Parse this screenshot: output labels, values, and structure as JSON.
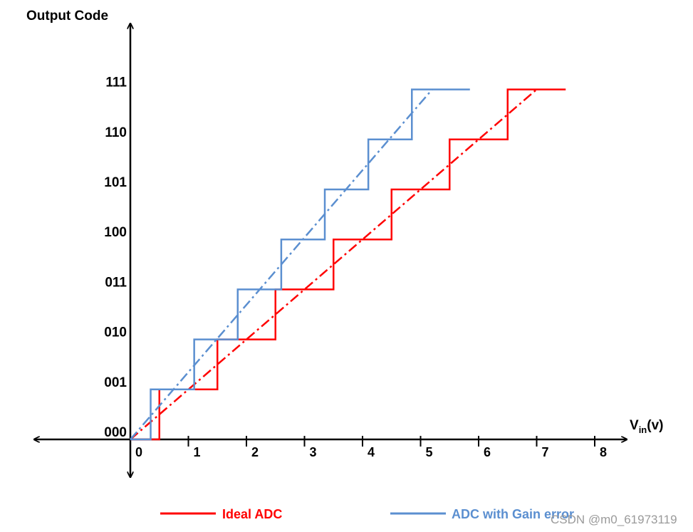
{
  "chart_data": {
    "type": "line",
    "y_title": "Output Code",
    "x_title_main": "V",
    "x_title_sub": "in",
    "x_title_unit": "(v)",
    "y_tick_labels": [
      "000",
      "001",
      "010",
      "011",
      "100",
      "101",
      "110",
      "111"
    ],
    "x_tick_labels": [
      "0",
      "1",
      "2",
      "3",
      "4",
      "5",
      "6",
      "7",
      "8"
    ],
    "xlim": [
      -1.7,
      8.5
    ],
    "ylim": [
      0,
      7.3
    ],
    "series": [
      {
        "name": "Ideal ADC",
        "color": "#ff0000",
        "steps": {
          "x": [
            0,
            0.5,
            1.5,
            2.5,
            3.5,
            4.5,
            5.5,
            6.5,
            7.5
          ],
          "levels": [
            0,
            1,
            2,
            3,
            4,
            5,
            6,
            7
          ]
        },
        "trend": {
          "x": [
            0,
            7
          ],
          "y": [
            0,
            7
          ]
        }
      },
      {
        "name": "ADC with Gain error",
        "color": "#5b8fd0",
        "steps": {
          "x": [
            0,
            0.35,
            1.1,
            1.85,
            2.6,
            3.35,
            4.1,
            4.85,
            5.85
          ],
          "levels": [
            0,
            1,
            2,
            3,
            4,
            5,
            6,
            7
          ]
        },
        "trend": {
          "x": [
            0,
            5.2
          ],
          "y": [
            0,
            7
          ]
        }
      }
    ],
    "legend": {
      "placement": "bottom",
      "items": [
        {
          "label": "Ideal ADC",
          "color": "#ff0000"
        },
        {
          "label": "ADC with Gain error",
          "color": "#5b8fd0"
        }
      ]
    }
  },
  "watermark": "CSDN @m0_61973119"
}
